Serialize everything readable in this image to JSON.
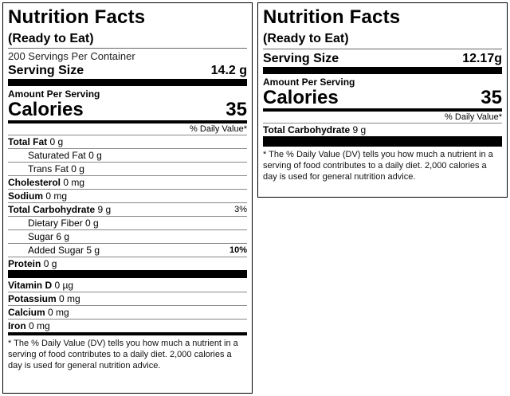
{
  "left": {
    "title": "Nutrition Facts",
    "subtitle": "(Ready to Eat)",
    "servings_per_container": "200 Servings Per Container",
    "serving_size_label": "Serving Size",
    "serving_size_value": "14.2 g",
    "amount_per_serving": "Amount Per Serving",
    "calories_label": "Calories",
    "calories_value": "35",
    "daily_value_header": "% Daily Value*",
    "rows": [
      {
        "name": "Total Fat",
        "amount": "0 g",
        "dv": ""
      },
      {
        "name": "Saturated Fat",
        "amount": "0 g",
        "dv": ""
      },
      {
        "name": "Trans Fat",
        "amount": "0 g",
        "dv": ""
      },
      {
        "name": "Cholesterol",
        "amount": "0 mg",
        "dv": ""
      },
      {
        "name": "Sodium",
        "amount": "0 mg",
        "dv": ""
      },
      {
        "name": "Total Carbohydrate",
        "amount": "9 g",
        "dv": "3%"
      },
      {
        "name": "Dietary Fiber",
        "amount": "0 g",
        "dv": ""
      },
      {
        "name": "Sugar",
        "amount": "6 g",
        "dv": ""
      },
      {
        "name": "Added Sugar",
        "amount": "5 g",
        "dv": "10%"
      },
      {
        "name": "Protein",
        "amount": "0 g",
        "dv": ""
      }
    ],
    "vitamins": [
      {
        "name": "Vitamin D",
        "amount": "0 µg"
      },
      {
        "name": "Potassium",
        "amount": "0 mg"
      },
      {
        "name": "Calcium",
        "amount": "0 mg"
      },
      {
        "name": "Iron",
        "amount": "0 mg"
      }
    ],
    "footnote": "* The % Daily Value (DV) tells you how much a nutrient in a serving of food contributes to a daily diet. 2,000 calories a day is used for general nutrition advice."
  },
  "right": {
    "title": "Nutrition Facts",
    "subtitle": "(Ready to Eat)",
    "serving_size_label": "Serving Size",
    "serving_size_value": "12.17g",
    "amount_per_serving": "Amount Per Serving",
    "calories_label": "Calories",
    "calories_value": "35",
    "daily_value_header": "% Daily Value*",
    "rows": [
      {
        "name": "Total Carbohydrate",
        "amount": "9 g",
        "dv": ""
      }
    ],
    "footnote": "* The % Daily Value (DV) tells you how much a nutrient in a serving of food contributes to a daily diet. 2,000 calories a day is used for general nutrition advice."
  }
}
